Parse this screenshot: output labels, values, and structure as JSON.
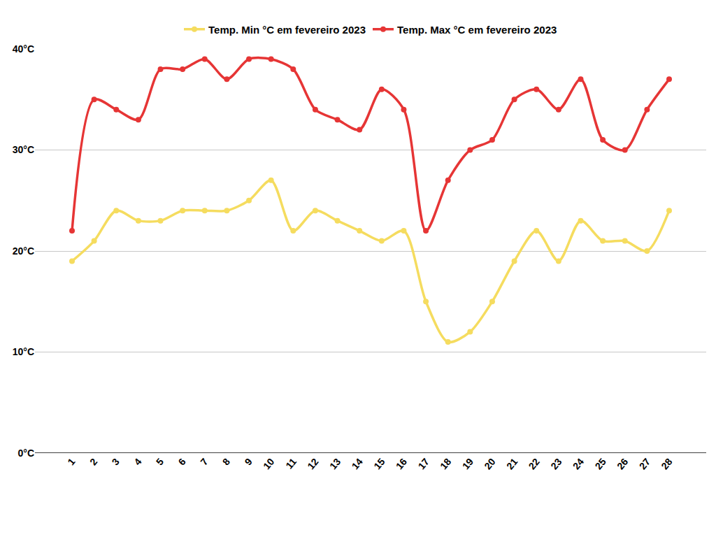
{
  "chart_data": {
    "type": "line",
    "categories": [
      "1",
      "2",
      "3",
      "4",
      "5",
      "6",
      "7",
      "8",
      "9",
      "10",
      "11",
      "12",
      "13",
      "14",
      "15",
      "16",
      "17",
      "18",
      "19",
      "20",
      "21",
      "22",
      "23",
      "24",
      "25",
      "26",
      "27",
      "28"
    ],
    "series": [
      {
        "name": "Temp. Min °C em fevereiro 2023",
        "color": "#f5dc5f",
        "values": [
          19,
          21,
          24,
          23,
          23,
          24,
          24,
          24,
          25,
          27,
          22,
          24,
          23,
          22,
          21,
          22,
          15,
          11,
          12,
          15,
          19,
          22,
          19,
          23,
          21,
          21,
          20,
          24
        ]
      },
      {
        "name": "Temp. Max °C em fevereiro 2023",
        "color": "#e63535",
        "values": [
          22,
          35,
          34,
          33,
          38,
          38,
          39,
          37,
          39,
          39,
          38,
          34,
          33,
          32,
          36,
          34,
          22,
          27,
          30,
          31,
          35,
          36,
          34,
          37,
          31,
          30,
          34,
          37
        ]
      }
    ],
    "ylim": [
      0,
      40
    ],
    "yticks": [
      {
        "value": 0,
        "label": "0°C"
      },
      {
        "value": 10,
        "label": "10°C"
      },
      {
        "value": 20,
        "label": "20°C"
      },
      {
        "value": 30,
        "label": "30°C"
      },
      {
        "value": 40,
        "label": "40°C"
      }
    ],
    "grid": true,
    "legend": "top",
    "marker": "circle"
  }
}
